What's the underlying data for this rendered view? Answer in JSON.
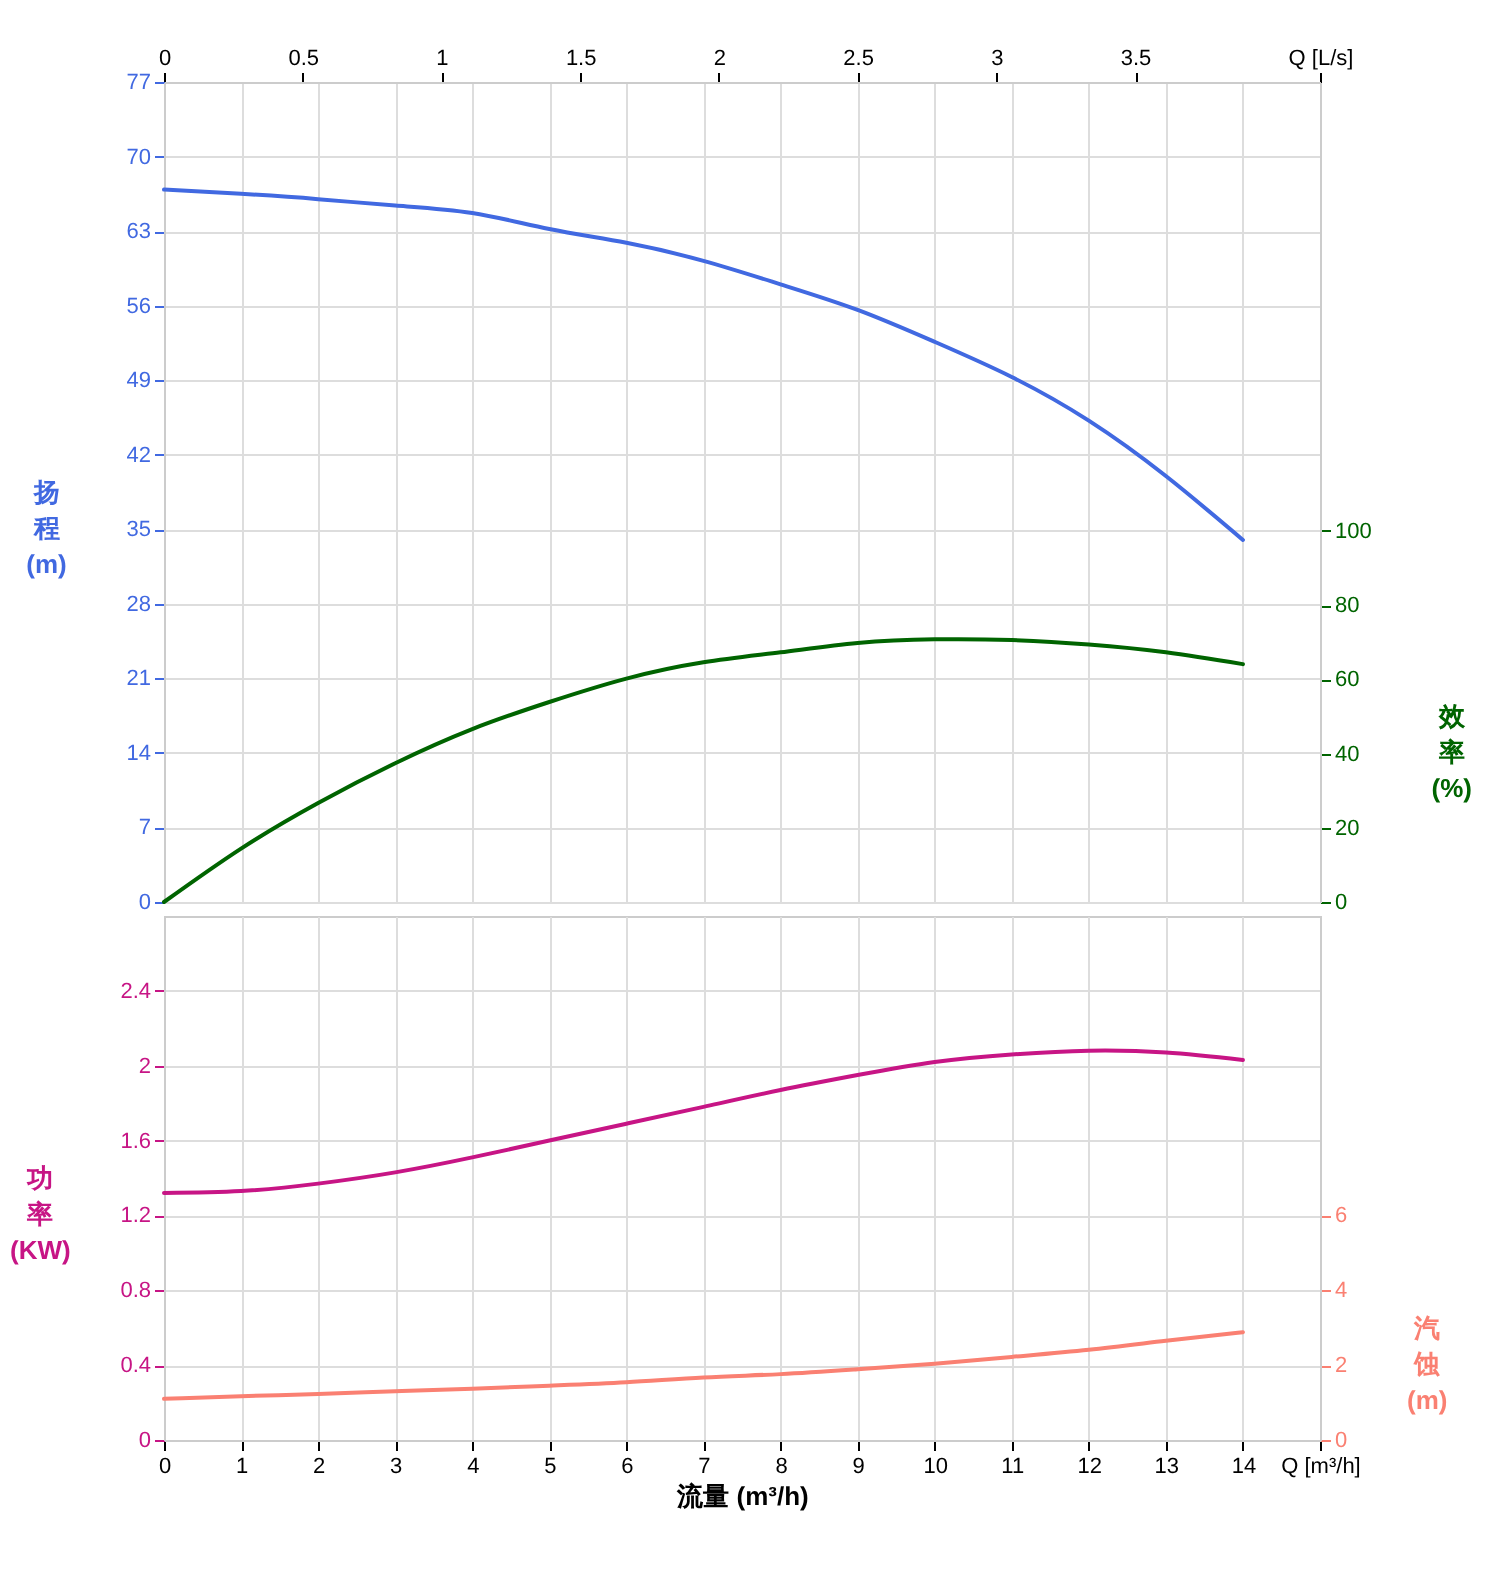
{
  "chart_data": [
    {
      "type": "line",
      "x": [
        0,
        1,
        2,
        3,
        4,
        5,
        6,
        7,
        8,
        9,
        10,
        11,
        12,
        13,
        14
      ],
      "xlim": [
        0,
        15
      ],
      "xticks": [
        0,
        1,
        2,
        3,
        4,
        5,
        6,
        7,
        8,
        9,
        10,
        11,
        12,
        13,
        14,
        15
      ],
      "x2lim": [
        0,
        4.1667
      ],
      "x2ticks": [
        0,
        0.5,
        1,
        1.5,
        2,
        2.5,
        3,
        3.5,
        {
          "value": 4.1667,
          "label": "Q [L/s]"
        }
      ],
      "ylabel": "扬程 (m)",
      "ylim": [
        0,
        77
      ],
      "yticks": [
        0,
        7,
        14,
        21,
        28,
        35,
        42,
        49,
        56,
        63,
        70,
        77
      ],
      "y2label": "效率 (%)",
      "y2lim": [
        0,
        221
      ],
      "y2ticks": [
        0,
        20,
        40,
        60,
        80,
        100
      ],
      "tick_labels": "y",
      "grid": true,
      "series": [
        {
          "color": "#4169e1",
          "values": [
            66.9,
            66.5,
            66.0,
            65.4,
            64.7,
            63.2,
            61.9,
            60.2,
            58.0,
            55.6,
            52.6,
            49.3,
            45.2,
            40.0,
            34.0
          ]
        },
        {
          "color": "#006400",
          "axis": "y2",
          "values": [
            0,
            14.4,
            26.7,
            37.4,
            46.6,
            53.9,
            60.2,
            64.6,
            67.3,
            69.8,
            70.8,
            70.6,
            69.4,
            67.3,
            64.1
          ]
        }
      ]
    },
    {
      "type": "line",
      "x": [
        0,
        1,
        2,
        3,
        4,
        5,
        6,
        7,
        8,
        9,
        10,
        11,
        12,
        13,
        14
      ],
      "xlim": [
        0,
        15
      ],
      "xticks": [
        0,
        1,
        2,
        3,
        4,
        5,
        6,
        7,
        8,
        9,
        10,
        11,
        12,
        13,
        14,
        {
          "value": 15,
          "label": "Q [m³/h]"
        }
      ],
      "xlabel": "流量 (m³/h)",
      "ylabel": "功率 (KW)",
      "ylim": [
        0,
        2.8
      ],
      "yticks": [
        0,
        0.4,
        0.8,
        1.2,
        1.6,
        2,
        2.4
      ],
      "y2label": "汽蚀 (m)",
      "y2lim": [
        0,
        14
      ],
      "y2ticks": [
        0,
        2,
        4,
        6
      ],
      "grid": true,
      "series": [
        {
          "color": "#c71585",
          "values": [
            1.32,
            1.33,
            1.37,
            1.43,
            1.51,
            1.6,
            1.69,
            1.78,
            1.87,
            1.95,
            2.02,
            2.06,
            2.08,
            2.07,
            2.03
          ]
        },
        {
          "color": "#fa8072",
          "axis": "y2",
          "values": [
            1.1,
            1.17,
            1.23,
            1.3,
            1.37,
            1.45,
            1.54,
            1.67,
            1.76,
            1.89,
            2.04,
            2.22,
            2.41,
            2.65,
            2.88
          ]
        }
      ]
    }
  ]
}
